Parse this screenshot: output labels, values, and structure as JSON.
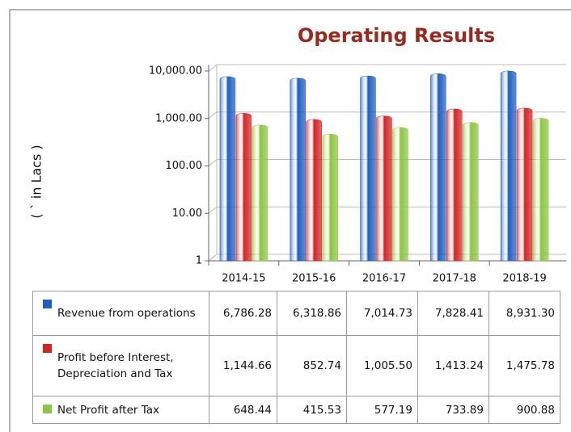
{
  "chart_data": {
    "type": "bar",
    "title": "Operating Results",
    "y_label": "( ` in Lacs )",
    "log_scale": true,
    "grid": true,
    "categories": [
      "2014-15",
      "2015-16",
      "2016-17",
      "2017-18",
      "2018-19"
    ],
    "ylim": [
      1,
      10000
    ],
    "yticks": [
      {
        "value": 1,
        "label": "1"
      },
      {
        "value": 10,
        "label": "10.00"
      },
      {
        "value": 100,
        "label": "100.00"
      },
      {
        "value": 1000,
        "label": "1,000.00"
      },
      {
        "value": 10000,
        "label": "10,000.00"
      }
    ],
    "series": [
      {
        "name": "Revenue from operations",
        "color": "#1f5fc4",
        "values": [
          6786.28,
          6318.86,
          7014.73,
          7828.41,
          8931.3
        ],
        "value_labels": [
          "6,786.28",
          "6,318.86",
          "7,014.73",
          "7,828.41",
          "8,931.30"
        ]
      },
      {
        "name": "Profit before Interest, Depreciation and Tax",
        "color": "#d62222",
        "values": [
          1144.66,
          852.74,
          1005.5,
          1413.24,
          1475.78
        ],
        "value_labels": [
          "1,144.66",
          "852.74",
          "1,005.50",
          "1,413.24",
          "1,475.78"
        ]
      },
      {
        "name": "Net Profit after Tax",
        "color": "#8cc63e",
        "values": [
          648.44,
          415.53,
          577.19,
          733.89,
          900.88
        ],
        "value_labels": [
          "648.44",
          "415.53",
          "577.19",
          "733.89",
          "900.88"
        ]
      }
    ]
  }
}
